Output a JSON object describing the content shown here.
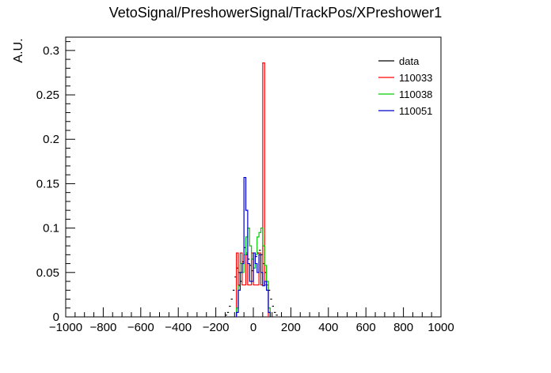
{
  "chart_data": {
    "type": "histogram",
    "title": "VetoSignal/PreshowerSignal/TrackPos/XPreshower1",
    "xlabel": "",
    "ylabel": "A.U.",
    "xlim": [
      -1000,
      1000
    ],
    "ylim": [
      0,
      0.315
    ],
    "x_ticks": [
      -1000,
      -800,
      -600,
      -400,
      -200,
      0,
      200,
      400,
      600,
      800,
      1000
    ],
    "y_ticks": [
      0,
      0.05,
      0.1,
      0.15,
      0.2,
      0.25,
      0.3
    ],
    "x_tick_labels": [
      "−1000",
      "−800",
      "−600",
      "−400",
      "−200",
      "0",
      "200",
      "400",
      "600",
      "800",
      "1000"
    ],
    "y_tick_labels": [
      "0",
      "0.05",
      "0.1",
      "0.15",
      "0.2",
      "0.25",
      "0.3"
    ],
    "bin_width": 10,
    "legend_position": "top-right",
    "series": [
      {
        "name": "data",
        "color": "#000000",
        "style": "points",
        "x": [
          -145,
          -135,
          -125,
          -115,
          -105,
          -95,
          -85,
          -75,
          -65,
          -55,
          -45,
          -35,
          -25,
          -15,
          -5,
          5,
          15,
          25,
          35,
          45,
          55,
          65,
          75,
          85,
          95,
          105,
          115,
          125
        ],
        "values": [
          0.002,
          0.005,
          0.012,
          0.02,
          0.03,
          0.045,
          0.055,
          0.05,
          0.04,
          0.062,
          0.078,
          0.07,
          0.065,
          0.058,
          0.052,
          0.055,
          0.068,
          0.072,
          0.075,
          0.07,
          0.06,
          0.05,
          0.04,
          0.03,
          0.02,
          0.012,
          0.005,
          0.002
        ]
      },
      {
        "name": "110033",
        "color": "#ff0000",
        "style": "step",
        "x": [
          -85,
          -75,
          -65,
          -55,
          -45,
          -35,
          -25,
          -15,
          -5,
          5,
          15,
          25,
          35,
          45,
          55,
          65,
          75
        ],
        "values": [
          0.072,
          0.036,
          0.072,
          0.036,
          0.036,
          0.072,
          0.036,
          0.036,
          0.072,
          0.036,
          0.036,
          0.036,
          0.072,
          0.036,
          0.286,
          0.036,
          0.036
        ]
      },
      {
        "name": "110038",
        "color": "#00cc00",
        "style": "step",
        "x": [
          -85,
          -75,
          -65,
          -55,
          -45,
          -35,
          -25,
          -15,
          -5,
          5,
          15,
          25,
          35,
          45,
          55,
          65,
          75,
          85
        ],
        "values": [
          0.01,
          0.035,
          0.06,
          0.05,
          0.07,
          0.09,
          0.1,
          0.08,
          0.065,
          0.055,
          0.07,
          0.09,
          0.095,
          0.1,
          0.08,
          0.058,
          0.04,
          0.01
        ]
      },
      {
        "name": "110051",
        "color": "#0000cc",
        "style": "step",
        "x": [
          -85,
          -75,
          -65,
          -55,
          -45,
          -35,
          -25,
          -15,
          -5,
          5,
          15,
          25,
          35,
          45,
          55,
          65,
          75,
          85
        ],
        "values": [
          0.005,
          0.03,
          0.05,
          0.06,
          0.157,
          0.12,
          0.06,
          0.04,
          0.04,
          0.072,
          0.06,
          0.05,
          0.07,
          0.05,
          0.035,
          0.04,
          0.03,
          0.005
        ]
      }
    ]
  }
}
